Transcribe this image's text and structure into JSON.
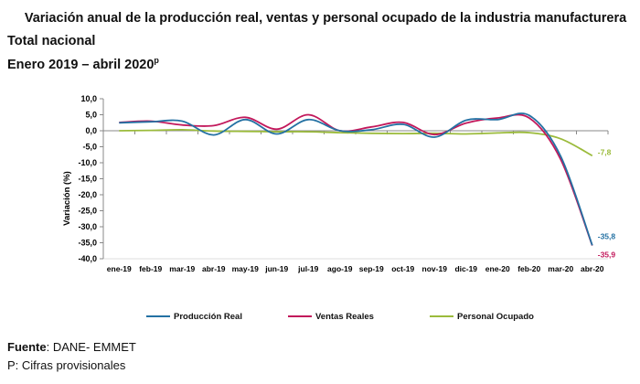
{
  "header": {
    "title": "Variación anual de la producción real, ventas y personal ocupado de la industria manufacturera",
    "subtitle1": "Total nacional",
    "subtitle2_main": "Enero 2019 – abril 2020",
    "subtitle2_sup": "p"
  },
  "footer": {
    "source_label": "Fuente",
    "source_value": ": DANE- EMMET",
    "note": "P: Cifras provisionales"
  },
  "chart_data": {
    "type": "line",
    "ylabel": "Variación (%)",
    "ylim": [
      -40,
      10
    ],
    "yticks": [
      10,
      5,
      0,
      -5,
      -10,
      -15,
      -20,
      -25,
      -30,
      -35,
      -40
    ],
    "ytick_labels": [
      "10,0",
      "5,0",
      "0,0",
      "-5,0",
      "-10,0",
      "-15,0",
      "-20,0",
      "-25,0",
      "-30,0",
      "-35,0",
      "-40,0"
    ],
    "categories": [
      "ene-19",
      "feb-19",
      "mar-19",
      "abr-19",
      "may-19",
      "jun-19",
      "jul-19",
      "ago-19",
      "sep-19",
      "oct-19",
      "nov-19",
      "dic-19",
      "ene-20",
      "feb-20",
      "mar-20",
      "abr-20"
    ],
    "grid": false,
    "legend_position": "bottom",
    "series": [
      {
        "name": "Producción Real",
        "color": "#2471a3",
        "values": [
          2.5,
          2.8,
          3.0,
          -1.3,
          3.5,
          -1.0,
          3.5,
          0.0,
          0.3,
          2.0,
          -2.0,
          3.3,
          3.5,
          4.8,
          -8.0,
          -35.8
        ]
      },
      {
        "name": "Ventas Reales",
        "color": "#c2185b",
        "values": [
          2.6,
          3.0,
          1.8,
          1.6,
          4.2,
          0.5,
          5.0,
          0.0,
          1.2,
          2.6,
          -1.2,
          2.4,
          4.0,
          4.0,
          -9.0,
          -35.9
        ]
      },
      {
        "name": "Personal Ocupado",
        "color": "#9bbb3b",
        "values": [
          0.0,
          0.1,
          0.3,
          -0.1,
          -0.2,
          -0.3,
          -0.3,
          -0.6,
          -0.8,
          -0.9,
          -0.8,
          -1.0,
          -0.7,
          -0.6,
          -2.5,
          -7.8
        ]
      }
    ],
    "end_labels": [
      {
        "series": "Personal Ocupado",
        "text": "-7,8"
      },
      {
        "series": "Producción Real",
        "text": "-35,8"
      },
      {
        "series": "Ventas Reales",
        "text": "-35,9"
      }
    ]
  }
}
